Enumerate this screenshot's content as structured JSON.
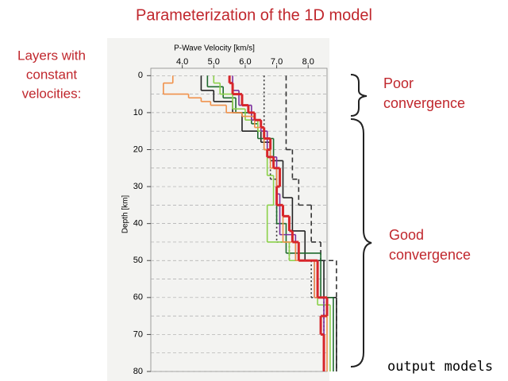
{
  "slide": {
    "title": "Parameterization of the 1D model",
    "left_note": [
      "Layers with",
      "constant",
      "velocities:"
    ],
    "poor": [
      "Poor",
      "convergence"
    ],
    "good": [
      "Good",
      "convergence"
    ],
    "footer": "output models"
  },
  "chart_data": {
    "type": "step-profile",
    "xlabel": "P-Wave Velocity [km/s]",
    "ylabel": "Depth [km]",
    "xlim": [
      3.0,
      8.6
    ],
    "ylim": [
      -2,
      80
    ],
    "xticks": [
      {
        "value": 4,
        "label": "4.0"
      },
      {
        "value": 5,
        "label": "5.0"
      },
      {
        "value": 6,
        "label": "6.0"
      },
      {
        "value": 7,
        "label": "7.0"
      },
      {
        "value": 8,
        "label": "8.0"
      }
    ],
    "yticks": [
      0,
      10,
      20,
      30,
      40,
      50,
      60,
      70,
      80
    ],
    "minor_yticks": [
      5,
      15,
      25,
      35,
      45,
      55,
      65,
      75
    ],
    "grid": true,
    "series": [
      {
        "color": "#333333",
        "dash": "2,3",
        "x": [
          6.6,
          6.8,
          7.0,
          7.4,
          8.1,
          8.5
        ],
        "values": [
          20,
          28,
          45,
          50,
          60,
          80
        ]
      },
      {
        "color": "#333333",
        "dash": "6,4",
        "x": [
          7.3,
          7.5,
          7.7,
          8.1,
          8.4,
          8.9
        ],
        "values": [
          20,
          28,
          35,
          45,
          50,
          80
        ]
      },
      {
        "color": "#222222",
        "x": [
          4.6,
          5.0,
          5.6,
          5.9,
          6.5,
          6.8,
          7.2,
          7.5,
          7.9,
          8.5,
          8.9
        ],
        "values": [
          4,
          7,
          10,
          15,
          18,
          23,
          33,
          42,
          50,
          60,
          80
        ]
      },
      {
        "color": "#1f6b2e",
        "x": [
          4.8,
          5.3,
          5.7,
          6.2,
          6.4,
          6.9,
          7.0,
          7.3,
          8.4,
          8.8
        ],
        "values": [
          3,
          6,
          10,
          13,
          17,
          25,
          40,
          48,
          60,
          80
        ]
      },
      {
        "color": "#8bd14a",
        "x": [
          5.0,
          5.2,
          5.6,
          6.0,
          6.4,
          6.6,
          6.7,
          6.9,
          6.7,
          7.4,
          8.3,
          8.7
        ],
        "values": [
          2,
          5,
          9,
          12,
          15,
          20,
          27,
          35,
          45,
          50,
          62,
          80
        ]
      },
      {
        "color": "#7b2f9e",
        "x": [
          5.6,
          5.8,
          6.2,
          6.5,
          6.7,
          7.0,
          7.1,
          7.6,
          8.2,
          8.5
        ],
        "values": [
          4,
          8,
          12,
          15,
          22,
          32,
          43,
          50,
          60,
          80
        ]
      },
      {
        "color": "#f0914a",
        "x": [
          3.7,
          3.4,
          4.2,
          4.6,
          4.9,
          5.4,
          5.9,
          6.3,
          6.6,
          6.8,
          7.0,
          7.2,
          7.6,
          8.2,
          8.6
        ],
        "values": [
          2,
          5,
          6,
          7,
          8,
          10,
          11,
          14,
          20,
          25,
          35,
          45,
          50,
          60,
          80
        ]
      },
      {
        "color": "#d7262b",
        "width": 3,
        "x": [
          5.5,
          5.6,
          5.9,
          6.1,
          6.3,
          6.5,
          6.6,
          6.8,
          6.7,
          6.9,
          7.1,
          7.0,
          7.2,
          7.4,
          7.5,
          7.7,
          8.3,
          8.6,
          8.4,
          8.5
        ],
        "values": [
          2,
          5,
          8,
          10,
          12,
          14,
          17,
          20,
          22,
          25,
          30,
          35,
          38,
          42,
          45,
          50,
          60,
          65,
          70,
          80
        ]
      }
    ]
  }
}
